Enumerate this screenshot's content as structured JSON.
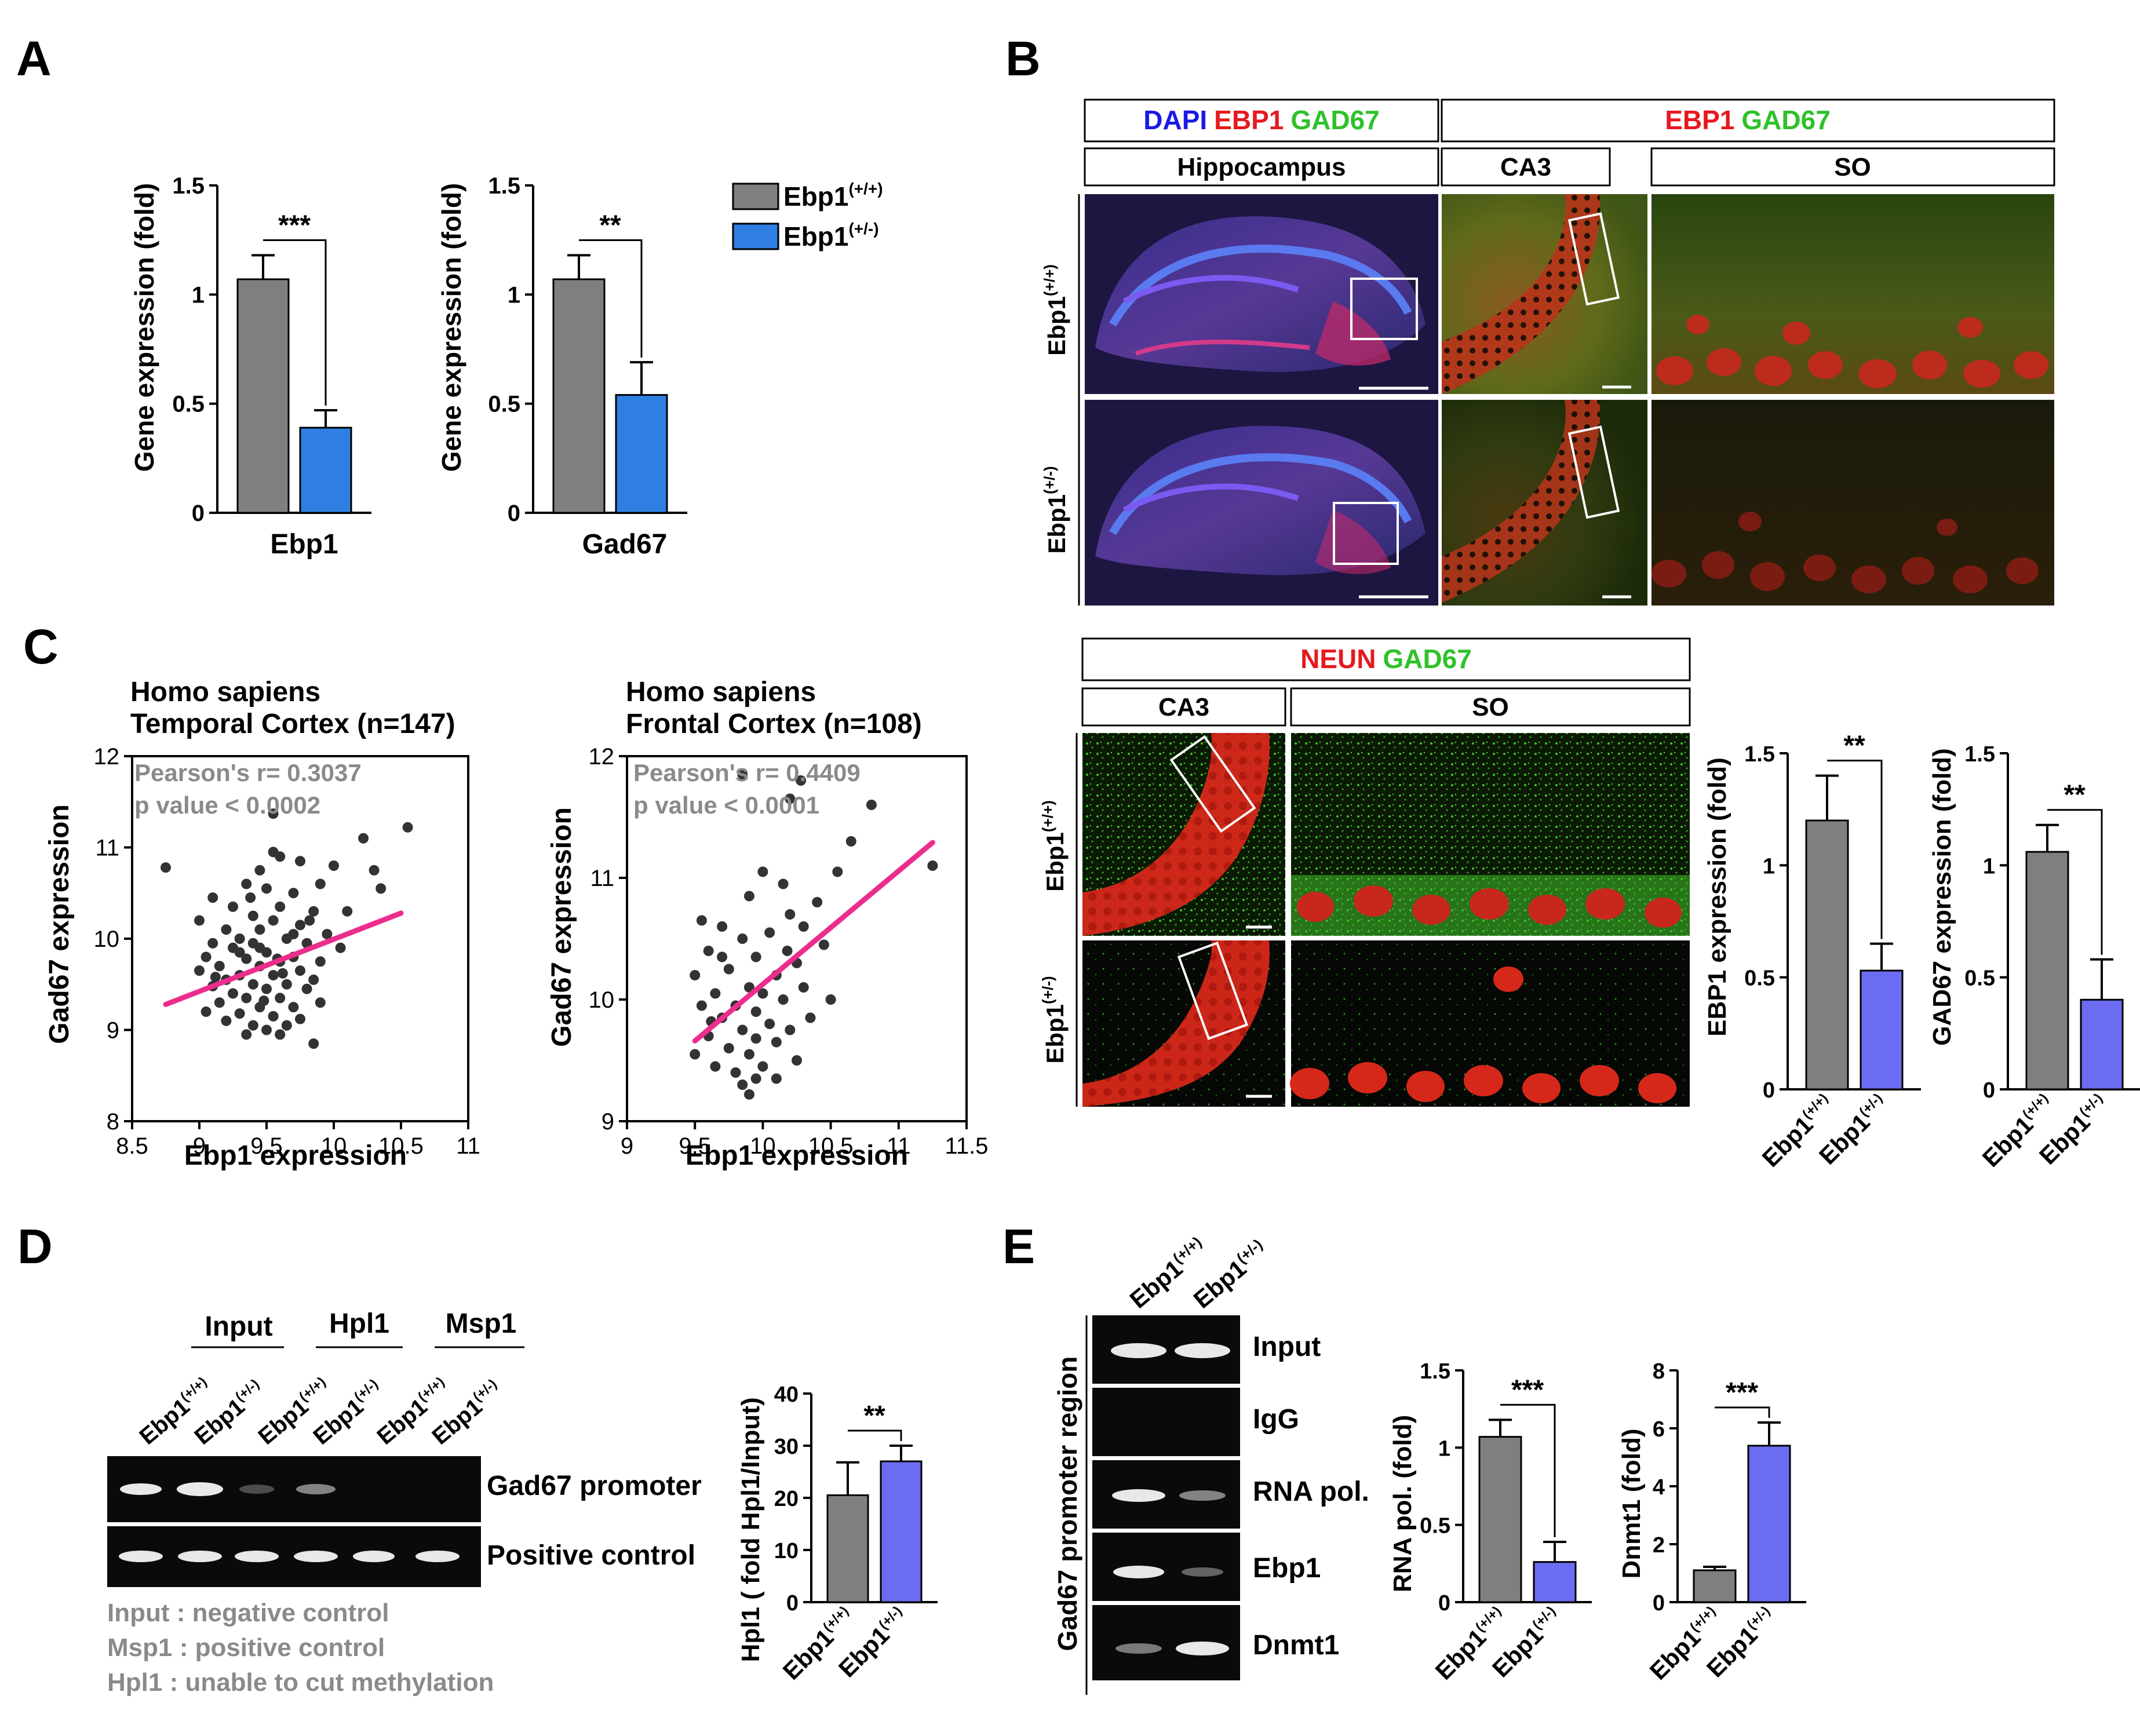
{
  "panel_letters": {
    "a": "A",
    "b": "B",
    "c": "C",
    "d": "D",
    "e": "E"
  },
  "genotypes": {
    "wt_base": "Ebp1",
    "wt_sup": "(+/+)",
    "het_base": "Ebp1",
    "het_sup": "(+/-)"
  },
  "colors": {
    "gray": "#7f7f7f",
    "blue": "#2f7fe3",
    "purple": "#6c6cf2",
    "pink": "#ec2d8c",
    "dot": "#333333",
    "note_gray": "#8a8a8a"
  },
  "panel_a": {
    "legend": [
      "Ebp1",
      "Ebp1"
    ],
    "ebp1_chart": {
      "xlabel": "Ebp1",
      "ylabel": "Gene expression (fold)",
      "sig": "***"
    },
    "gad67_chart": {
      "xlabel": "Gad67",
      "ylabel": "Gene expression (fold)",
      "sig": "**"
    }
  },
  "panel_b": {
    "header1": {
      "dapi": "DAPI",
      "ebp1": "EBP1",
      "gad67": "GAD67"
    },
    "header2": {
      "ebp1": "EBP1",
      "gad67": "GAD67"
    },
    "sub": {
      "hippocampus": "Hippocampus",
      "ca3": "CA3",
      "so": "SO"
    },
    "neun_header": {
      "neun": "NEUN",
      "gad67": "GAD67"
    },
    "neun_sub": {
      "ca3": "CA3",
      "so": "SO"
    },
    "ebp1_chart": {
      "ylabel": "EBP1 expression (fold)",
      "sig": "**"
    },
    "gad67_chart": {
      "ylabel": "GAD67 expression (fold)",
      "sig": "**"
    }
  },
  "panel_c": {
    "left": {
      "title1": "Homo sapiens",
      "title2": "Temporal Cortex (n=147)",
      "stat1": "Pearson's r= 0.3037",
      "stat2": "p value < 0.0002",
      "xlabel": "Ebp1 expression",
      "ylabel": "Gad67 expression"
    },
    "right": {
      "title1": "Homo sapiens",
      "title2": "Frontal Cortex (n=108)",
      "stat1": "Pearson's r= 0.4409",
      "stat2": "p value < 0.0001",
      "xlabel": "Ebp1 expression",
      "ylabel": "Gad67 expression"
    }
  },
  "panel_d": {
    "groups": [
      "Input",
      "Hpl1",
      "Msp1"
    ],
    "rows": [
      "Gad67 promoter",
      "Positive control"
    ],
    "notes": [
      "Input : negative control",
      "Msp1 : positive control",
      "Hpl1 : unable to cut methylation"
    ],
    "chart": {
      "ylabel": "Hpl1 ( fold Hpl1/Input)",
      "sig": "**"
    }
  },
  "panel_e": {
    "side_label": "Gad67 promoter region",
    "rows": [
      "Input",
      "IgG",
      "RNA pol.",
      "Ebp1",
      "Dnmt1"
    ],
    "rna_chart": {
      "ylabel": "RNA pol. (fold)",
      "sig": "***"
    },
    "dnmt_chart": {
      "ylabel": "Dnmt1 (fold)",
      "sig": "***"
    }
  },
  "chart_data": [
    {
      "id": "A-Ebp1",
      "type": "bar",
      "categories": [
        "Ebp1(+/+)",
        "Ebp1(+/-)"
      ],
      "values": [
        1.07,
        0.39
      ],
      "errors": [
        0.11,
        0.08
      ],
      "ylim": [
        0,
        1.5
      ],
      "yticks": [
        0,
        0.5,
        1.0,
        1.5
      ],
      "ylabel": "Gene expression (fold)",
      "xlabel": "Ebp1",
      "significance": "***"
    },
    {
      "id": "A-Gad67",
      "type": "bar",
      "categories": [
        "Ebp1(+/+)",
        "Ebp1(+/-)"
      ],
      "values": [
        1.07,
        0.54
      ],
      "errors": [
        0.11,
        0.15
      ],
      "ylim": [
        0,
        1.5
      ],
      "yticks": [
        0,
        0.5,
        1.0,
        1.5
      ],
      "ylabel": "Gene expression (fold)",
      "xlabel": "Gad67",
      "significance": "**"
    },
    {
      "id": "B-EBP1",
      "type": "bar",
      "categories": [
        "Ebp1(+/+)",
        "Ebp1(+/-)"
      ],
      "values": [
        1.2,
        0.53
      ],
      "errors": [
        0.2,
        0.12
      ],
      "ylim": [
        0,
        1.5
      ],
      "yticks": [
        0,
        0.5,
        1.0,
        1.5
      ],
      "ylabel": "EBP1 expression (fold)",
      "significance": "**"
    },
    {
      "id": "B-GAD67",
      "type": "bar",
      "categories": [
        "Ebp1(+/+)",
        "Ebp1(+/-)"
      ],
      "values": [
        1.06,
        0.4
      ],
      "errors": [
        0.12,
        0.18
      ],
      "ylim": [
        0,
        1.5
      ],
      "yticks": [
        0,
        0.5,
        1.0,
        1.5
      ],
      "ylabel": "GAD67 expression (fold)",
      "significance": "**"
    },
    {
      "id": "C-Temporal",
      "type": "scatter",
      "title": "Homo sapiens Temporal Cortex (n=147)",
      "xlabel": "Ebp1 expression",
      "ylabel": "Gad67 expression",
      "xlim": [
        8.5,
        11
      ],
      "ylim": [
        8,
        12
      ],
      "xticks": [
        8.5,
        9,
        9.5,
        10,
        10.5,
        11
      ],
      "yticks": [
        8,
        9,
        10,
        11,
        12
      ],
      "fit": {
        "x": [
          8.75,
          10.5
        ],
        "y": [
          9.28,
          10.28
        ]
      },
      "points": [
        [
          9.55,
          11.37
        ],
        [
          10.55,
          11.22
        ],
        [
          10.22,
          11.1
        ],
        [
          9.55,
          10.95
        ],
        [
          9.6,
          10.9
        ],
        [
          9.75,
          10.85
        ],
        [
          9.45,
          10.75
        ],
        [
          10.0,
          10.8
        ],
        [
          10.3,
          10.75
        ],
        [
          8.75,
          10.78
        ],
        [
          9.35,
          10.6
        ],
        [
          9.9,
          10.6
        ],
        [
          10.35,
          10.55
        ],
        [
          9.5,
          10.55
        ],
        [
          9.1,
          10.45
        ],
        [
          9.7,
          10.5
        ],
        [
          9.25,
          10.35
        ],
        [
          9.6,
          10.35
        ],
        [
          9.85,
          10.3
        ],
        [
          10.1,
          10.3
        ],
        [
          9.4,
          10.25
        ],
        [
          9.0,
          10.2
        ],
        [
          9.55,
          10.2
        ],
        [
          9.75,
          10.15
        ],
        [
          9.2,
          10.1
        ],
        [
          9.45,
          10.1
        ],
        [
          9.95,
          10.05
        ],
        [
          9.3,
          10.0
        ],
        [
          9.65,
          10.0
        ],
        [
          9.1,
          9.95
        ],
        [
          9.4,
          9.95
        ],
        [
          9.8,
          9.95
        ],
        [
          10.05,
          9.9
        ],
        [
          9.25,
          9.9
        ],
        [
          9.5,
          9.85
        ],
        [
          9.7,
          9.8
        ],
        [
          9.05,
          9.8
        ],
        [
          9.35,
          9.78
        ],
        [
          9.6,
          9.75
        ],
        [
          9.9,
          9.75
        ],
        [
          9.15,
          9.7
        ],
        [
          9.45,
          9.7
        ],
        [
          9.75,
          9.65
        ],
        [
          9.0,
          9.65
        ],
        [
          9.3,
          9.6
        ],
        [
          9.55,
          9.6
        ],
        [
          9.85,
          9.55
        ],
        [
          9.2,
          9.55
        ],
        [
          9.4,
          9.5
        ],
        [
          9.65,
          9.5
        ],
        [
          9.1,
          9.48
        ],
        [
          9.5,
          9.45
        ],
        [
          9.8,
          9.45
        ],
        [
          9.25,
          9.4
        ],
        [
          9.35,
          9.35
        ],
        [
          9.6,
          9.35
        ],
        [
          9.9,
          9.3
        ],
        [
          9.15,
          9.3
        ],
        [
          9.45,
          9.25
        ],
        [
          9.7,
          9.25
        ],
        [
          9.05,
          9.2
        ],
        [
          9.3,
          9.18
        ],
        [
          9.55,
          9.15
        ],
        [
          9.75,
          9.12
        ],
        [
          9.2,
          9.1
        ],
        [
          9.4,
          9.05
        ],
        [
          9.65,
          9.05
        ],
        [
          9.5,
          9.0
        ],
        [
          9.35,
          8.95
        ],
        [
          9.6,
          8.95
        ],
        [
          9.85,
          8.85
        ],
        [
          9.45,
          9.9
        ],
        [
          9.7,
          10.05
        ],
        [
          9.3,
          9.85
        ],
        [
          9.58,
          9.78
        ],
        [
          9.82,
          10.2
        ],
        [
          9.38,
          10.45
        ],
        [
          9.12,
          9.58
        ],
        [
          9.62,
          9.62
        ],
        [
          9.48,
          9.32
        ]
      ]
    },
    {
      "id": "C-Frontal",
      "type": "scatter",
      "title": "Homo sapiens Frontal Cortex (n=108)",
      "xlabel": "Ebp1 expression",
      "ylabel": "Gad67 expression",
      "xlim": [
        9,
        11.5
      ],
      "ylim": [
        9,
        12
      ],
      "xticks": [
        9,
        9.5,
        10,
        10.5,
        11,
        11.5
      ],
      "yticks": [
        9,
        10,
        11,
        12
      ],
      "fit": {
        "x": [
          9.5,
          11.25
        ],
        "y": [
          9.66,
          11.29
        ]
      },
      "points": [
        [
          9.85,
          11.85
        ],
        [
          10.28,
          11.8
        ],
        [
          10.2,
          11.65
        ],
        [
          10.8,
          11.6
        ],
        [
          10.65,
          11.3
        ],
        [
          11.25,
          11.1
        ],
        [
          10.55,
          11.05
        ],
        [
          10.0,
          11.05
        ],
        [
          10.15,
          10.95
        ],
        [
          10.4,
          10.8
        ],
        [
          9.9,
          10.85
        ],
        [
          10.2,
          10.7
        ],
        [
          10.3,
          10.6
        ],
        [
          9.55,
          10.65
        ],
        [
          9.7,
          10.6
        ],
        [
          10.05,
          10.55
        ],
        [
          9.85,
          10.5
        ],
        [
          10.45,
          10.45
        ],
        [
          9.6,
          10.4
        ],
        [
          9.95,
          10.35
        ],
        [
          10.25,
          10.3
        ],
        [
          9.75,
          10.25
        ],
        [
          10.1,
          10.2
        ],
        [
          9.5,
          10.2
        ],
        [
          9.9,
          10.1
        ],
        [
          10.3,
          10.1
        ],
        [
          9.65,
          10.05
        ],
        [
          10.0,
          10.05
        ],
        [
          10.15,
          10.0
        ],
        [
          9.8,
          9.95
        ],
        [
          9.55,
          9.95
        ],
        [
          9.95,
          9.9
        ],
        [
          10.35,
          9.85
        ],
        [
          9.7,
          9.85
        ],
        [
          10.05,
          9.8
        ],
        [
          9.85,
          9.75
        ],
        [
          10.2,
          9.75
        ],
        [
          9.6,
          9.7
        ],
        [
          9.95,
          9.68
        ],
        [
          10.1,
          9.65
        ],
        [
          9.75,
          9.6
        ],
        [
          9.5,
          9.55
        ],
        [
          9.9,
          9.55
        ],
        [
          10.25,
          9.5
        ],
        [
          9.65,
          9.45
        ],
        [
          10.0,
          9.45
        ],
        [
          9.8,
          9.4
        ],
        [
          9.95,
          9.35
        ],
        [
          10.1,
          9.35
        ],
        [
          9.85,
          9.3
        ],
        [
          9.9,
          9.22
        ],
        [
          10.5,
          10.0
        ],
        [
          9.7,
          10.35
        ],
        [
          10.18,
          10.4
        ],
        [
          9.62,
          9.82
        ]
      ]
    },
    {
      "id": "D-Hpl1",
      "type": "bar",
      "categories": [
        "Ebp1(+/+)",
        "Ebp1(+/-)"
      ],
      "values": [
        20.5,
        27.0
      ],
      "errors": [
        6.3,
        3.0
      ],
      "ylim": [
        0,
        40
      ],
      "yticks": [
        0,
        10,
        20,
        30,
        40
      ],
      "ylabel": "Hpl1 ( fold Hpl1/Input)",
      "significance": "**"
    },
    {
      "id": "E-RNApol",
      "type": "bar",
      "categories": [
        "Ebp1(+/+)",
        "Ebp1(+/-)"
      ],
      "values": [
        1.07,
        0.26
      ],
      "errors": [
        0.11,
        0.13
      ],
      "ylim": [
        0,
        1.5
      ],
      "yticks": [
        0,
        0.5,
        1.0,
        1.5
      ],
      "ylabel": "RNA pol. (fold)",
      "significance": "***"
    },
    {
      "id": "E-Dnmt1",
      "type": "bar",
      "categories": [
        "Ebp1(+/+)",
        "Ebp1(+/-)"
      ],
      "values": [
        1.1,
        5.4
      ],
      "errors": [
        0.12,
        0.8
      ],
      "ylim": [
        0,
        8
      ],
      "yticks": [
        0,
        2,
        4,
        6,
        8
      ],
      "ylabel": "Dnmt1 (fold)",
      "significance": "***"
    }
  ]
}
